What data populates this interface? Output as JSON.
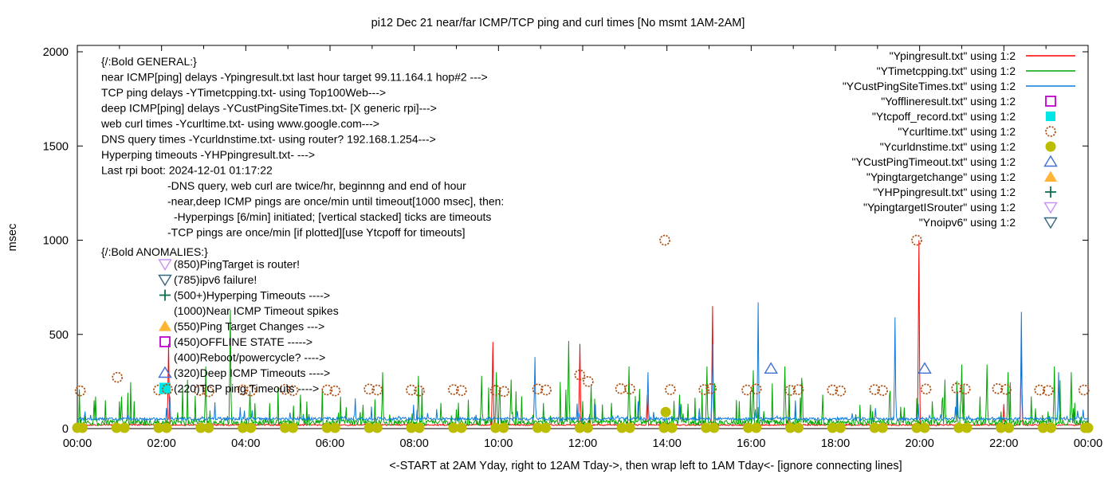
{
  "header": {
    "title": "pi12 Dec 21  near/far ICMP/TCP ping and curl times [No msmt 1AM-2AM]"
  },
  "chart_data": {
    "type": "line",
    "title": "pi12 Dec 21  near/far ICMP/TCP ping and curl times [No msmt 1AM-2AM]",
    "xlabel": "<-START at 2AM Yday, right to 12AM Tday->, then wrap left to 1AM Tday<- [ignore connecting lines]",
    "ylabel": "msec",
    "x_range": [
      0,
      24
    ],
    "y_range": [
      0,
      2000
    ],
    "y_ticks": [
      0,
      500,
      1000,
      1500,
      2000
    ],
    "x_tick_labels": [
      "00:00",
      "02:00",
      "04:00",
      "06:00",
      "08:00",
      "10:00",
      "12:00",
      "14:00",
      "16:00",
      "18:00",
      "20:00",
      "22:00",
      "00:00"
    ],
    "grid": false,
    "legend_position": "top-right",
    "noise_seed": 1337,
    "line_series": [
      {
        "name": "\"Ypingresult.txt\" using 1:2",
        "color": "#ff0000",
        "baseline": 16,
        "noise": 7,
        "spike_prob": 0.004,
        "spike_amp": 70,
        "spikes": [
          [
            2.17,
            450
          ],
          [
            9.86,
            460
          ],
          [
            11.93,
            450
          ],
          [
            13.53,
            180
          ],
          [
            15.08,
            650
          ],
          [
            16.9,
            140
          ],
          [
            19.98,
            1000
          ],
          [
            22.0,
            130
          ],
          [
            22.42,
            450
          ]
        ]
      },
      {
        "name": "\"YTimetcpping.txt\" using 1:2",
        "color": "#00a400",
        "baseline": 18,
        "noise": 30,
        "spike_prob": 0.1,
        "spike_amp": 230,
        "spikes": [
          [
            0.4,
            150
          ],
          [
            1.05,
            170
          ],
          [
            3.05,
            330
          ],
          [
            3.63,
            630
          ],
          [
            4.1,
            200
          ],
          [
            5.3,
            180
          ],
          [
            7.25,
            300
          ],
          [
            8.1,
            280
          ],
          [
            9.6,
            280
          ],
          [
            9.95,
            300
          ],
          [
            10.3,
            260
          ],
          [
            11.67,
            465
          ],
          [
            12.2,
            230
          ],
          [
            13.1,
            330
          ],
          [
            13.35,
            210
          ],
          [
            14.3,
            180
          ],
          [
            14.95,
            330
          ],
          [
            16.05,
            310
          ],
          [
            16.8,
            330
          ],
          [
            17.7,
            180
          ],
          [
            19.3,
            200
          ],
          [
            20.6,
            260
          ],
          [
            21.0,
            340
          ],
          [
            21.6,
            340
          ],
          [
            22.1,
            300
          ],
          [
            23.2,
            330
          ],
          [
            23.6,
            300
          ]
        ]
      },
      {
        "name": "\"YCustPingSiteTimes.txt\" using 1:2",
        "color": "#0d7bdc",
        "baseline": 44,
        "noise": 16,
        "spike_prob": 0.05,
        "spike_amp": 95,
        "spikes": [
          [
            2.2,
            170
          ],
          [
            6.6,
            160
          ],
          [
            10.87,
            380
          ],
          [
            12.3,
            130
          ],
          [
            13.55,
            300
          ],
          [
            15.08,
            450
          ],
          [
            16.17,
            670
          ],
          [
            19.42,
            590
          ],
          [
            20.9,
            200
          ],
          [
            22.42,
            620
          ],
          [
            23.3,
            300
          ]
        ]
      }
    ],
    "scatter_series": [
      {
        "name": "\"Ycurltime.txt\" using 1:2",
        "marker": "circle-open",
        "color": "#ad4f12",
        "points": [
          [
            0.07,
            200
          ],
          [
            0.95,
            272
          ],
          [
            1.93,
            205
          ],
          [
            2.9,
            203
          ],
          [
            3.12,
            196
          ],
          [
            3.93,
            205
          ],
          [
            4.12,
            200
          ],
          [
            4.93,
            208
          ],
          [
            5.12,
            202
          ],
          [
            5.93,
            205
          ],
          [
            6.12,
            200
          ],
          [
            6.93,
            210
          ],
          [
            7.12,
            205
          ],
          [
            7.93,
            205
          ],
          [
            8.12,
            200
          ],
          [
            8.93,
            207
          ],
          [
            9.12,
            202
          ],
          [
            9.93,
            203
          ],
          [
            10.13,
            197
          ],
          [
            10.93,
            210
          ],
          [
            11.13,
            205
          ],
          [
            11.93,
            285
          ],
          [
            12.13,
            250
          ],
          [
            12.9,
            212
          ],
          [
            13.12,
            210
          ],
          [
            13.95,
            1000
          ],
          [
            14.08,
            207
          ],
          [
            14.88,
            207
          ],
          [
            15.05,
            212
          ],
          [
            15.9,
            205
          ],
          [
            16.12,
            210
          ],
          [
            16.93,
            203
          ],
          [
            17.12,
            207
          ],
          [
            17.93,
            205
          ],
          [
            18.12,
            200
          ],
          [
            18.93,
            207
          ],
          [
            19.12,
            202
          ],
          [
            19.93,
            1000
          ],
          [
            20.15,
            210
          ],
          [
            20.88,
            215
          ],
          [
            21.08,
            210
          ],
          [
            21.85,
            212
          ],
          [
            22.05,
            208
          ],
          [
            22.85,
            205
          ],
          [
            23.05,
            202
          ],
          [
            23.9,
            205
          ]
        ]
      },
      {
        "name": "\"Ycurldnstime.txt\" using 1:2",
        "marker": "circle-filled",
        "color": "#bcbc00",
        "pair_hours": [
          0,
          1,
          2,
          3,
          4,
          5,
          6,
          7,
          8,
          9,
          10,
          11,
          12,
          13,
          14,
          15,
          16,
          17,
          18,
          19,
          20,
          21,
          22,
          23,
          24
        ],
        "pair_offsets": [
          -0.07,
          0.12
        ],
        "pair_y": 4,
        "extra_points": [
          [
            13.97,
            88
          ]
        ]
      },
      {
        "name": "\"YCustPingTimeout.txt\" using 1:2",
        "marker": "triangle-open",
        "color": "#3f6fd6",
        "points": [
          [
            16.47,
            318
          ],
          [
            20.12,
            318
          ]
        ]
      }
    ],
    "legend": [
      {
        "label": "\"Ypingresult.txt\" using 1:2",
        "swatch": "line",
        "color": "#ff0000"
      },
      {
        "label": "\"YTimetcpping.txt\" using 1:2",
        "swatch": "line",
        "color": "#00a400"
      },
      {
        "label": "\"YCustPingSiteTimes.txt\" using 1:2",
        "swatch": "line",
        "color": "#0d7bdc"
      },
      {
        "label": "\"Yofflineresult.txt\" using 1:2",
        "swatch": "square-open",
        "color": "#c000d0"
      },
      {
        "label": "\"Ytcpoff_record.txt\" using 1:2",
        "swatch": "square-filled",
        "color": "#00e5e5"
      },
      {
        "label": "\"Ycurltime.txt\" using 1:2",
        "swatch": "circle-open",
        "color": "#ad4f12"
      },
      {
        "label": "\"Ycurldnstime.txt\" using 1:2",
        "swatch": "circle-filled",
        "color": "#bcbc00"
      },
      {
        "label": "\"YCustPingTimeout.txt\" using 1:2",
        "swatch": "triangle-open",
        "color": "#3f6fd6"
      },
      {
        "label": "\"Ypingtargetchange\" using 1:2",
        "swatch": "triangle-filled",
        "color": "#ffb434"
      },
      {
        "label": "\"YHPpingresult.txt\" using 1:2",
        "swatch": "plus",
        "color": "#0c6e50"
      },
      {
        "label": "\"YpingtargetISrouter\" using 1:2",
        "swatch": "triangle-down-open",
        "color": "#c892f5"
      },
      {
        "label": "\"Ynoipv6\" using 1:2",
        "swatch": "triangle-down-open",
        "color": "#33667f"
      }
    ],
    "annotations": {
      "general_lines": [
        {
          "indent": 0,
          "text": "{/:Bold GENERAL:}"
        },
        {
          "indent": 0,
          "text": "near ICMP[ping] delays -Ypingresult.txt last hour target 99.11.164.1 hop#2 --->"
        },
        {
          "indent": 0,
          "text": "TCP ping delays -YTimetcpping.txt- using Top100Web--->"
        },
        {
          "indent": 0,
          "text": "deep ICMP[ping] delays -YCustPingSiteTimes.txt- [X generic rpi]--->"
        },
        {
          "indent": 0,
          "text": "web curl times -Ycurltime.txt- using www.google.com--->"
        },
        {
          "indent": 0,
          "text": "DNS query times -Ycurldnstime.txt- using router? 192.168.1.254--->"
        },
        {
          "indent": 0,
          "text": "Hyperping timeouts -YHPpingresult.txt- --->"
        },
        {
          "indent": 0,
          "text": "Last rpi boot: 2024-12-01 01:17:22"
        },
        {
          "indent": 1,
          "text": "-DNS query, web curl are twice/hr, beginnng and end of hour"
        },
        {
          "indent": 1,
          "text": "-near,deep ICMP pings are once/min until timeout[1000 msec], then:"
        },
        {
          "indent": 2,
          "text": "-Hyperpings [6/min] initiated; [vertical stacked] ticks are timeouts"
        },
        {
          "indent": 1,
          "text": "-TCP pings are once/min [if plotted][use Ytcpoff for timeouts]"
        }
      ],
      "anomalies_header": "{/:Bold ANOMALIES:}",
      "anomalies_lines": [
        {
          "icon": "triangle-down-open",
          "color": "#c892f5",
          "text": "(850)PingTarget is router!"
        },
        {
          "icon": "triangle-down-open",
          "color": "#33667f",
          "text": "(785)ipv6 failure!"
        },
        {
          "icon": "plus",
          "color": "#0c6e50",
          "text": "(500+)Hyperping Timeouts ---->"
        },
        {
          "icon": null,
          "color": null,
          "text": "(1000)Near ICMP Timeout spikes"
        },
        {
          "icon": "triangle-filled",
          "color": "#ffb434",
          "text": "(550)Ping Target Changes --->"
        },
        {
          "icon": "square-open",
          "color": "#c000d0",
          "text": "(450)OFFLINE STATE ----->"
        },
        {
          "icon": null,
          "color": null,
          "text": "(400)Reboot/powercycle? ---->"
        },
        {
          "icon": "triangle-open",
          "color": "#3f6fd6",
          "text": "(320)Deep ICMP Timeouts ---->"
        },
        {
          "icon": "square-circle",
          "color": "#00e5e5",
          "color2": "#ad4f12",
          "text": "(220)TCP ping Timeouts ---->"
        }
      ]
    }
  }
}
